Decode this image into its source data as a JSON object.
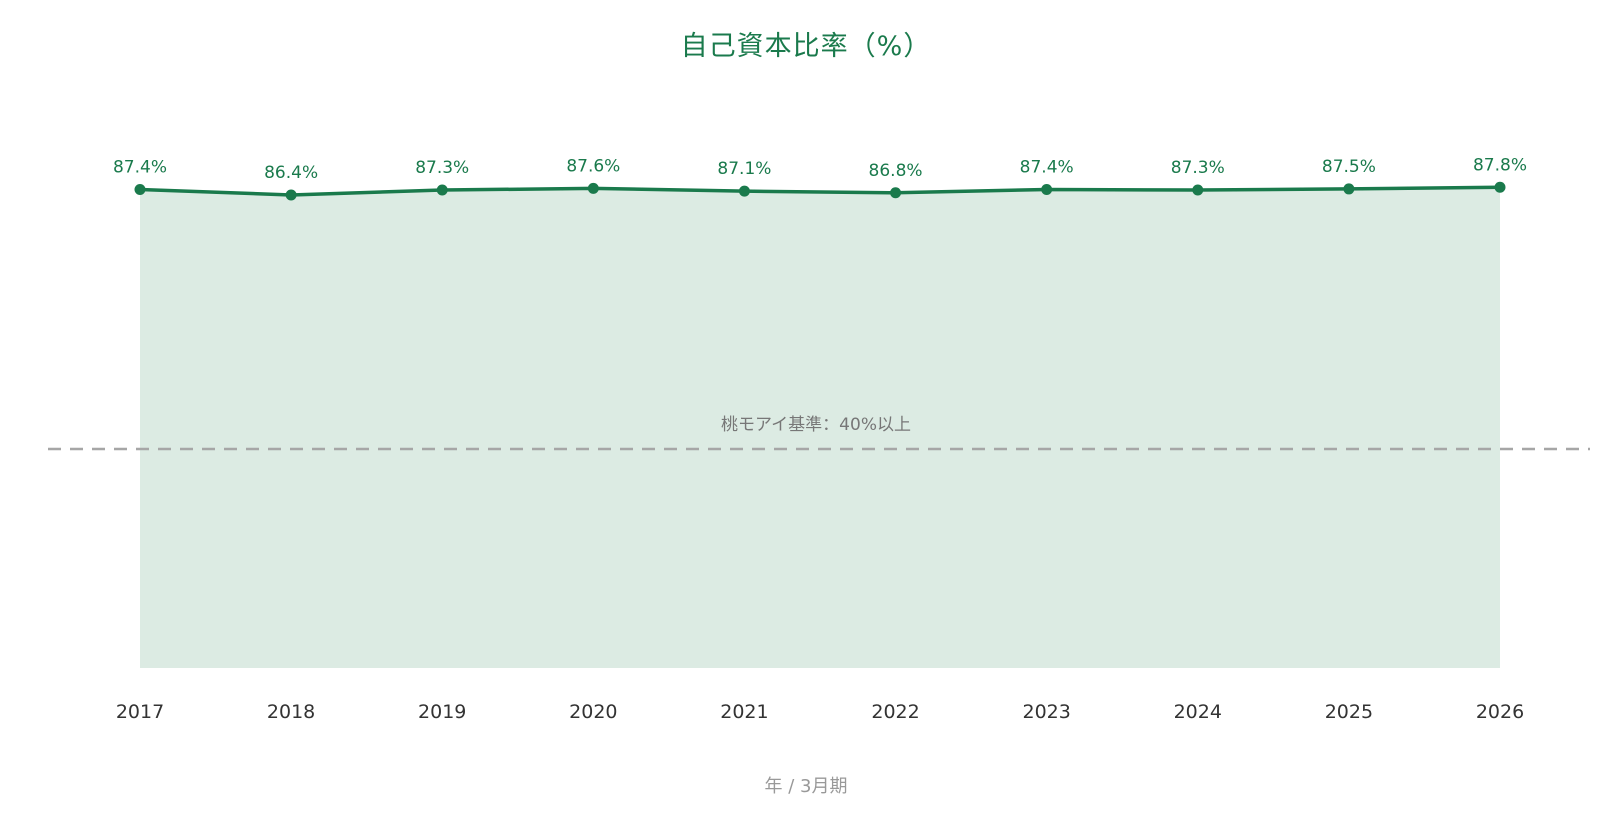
{
  "colors": {
    "line": "#1a7a4c",
    "area": "#dcebe3",
    "title": "#1a7a4c",
    "value_label": "#1a7a4c",
    "reference_line": "#a6a6a6",
    "reference_label": "#777777",
    "tick": "#333333",
    "axis_title": "#999999"
  },
  "chart_data": {
    "type": "area",
    "title": "自己資本比率（%）",
    "xlabel": "年 / 3月期",
    "ylabel": "",
    "categories": [
      "2017",
      "2018",
      "2019",
      "2020",
      "2021",
      "2022",
      "2023",
      "2024",
      "2025",
      "2026"
    ],
    "series": [
      {
        "values": [
          87.4,
          86.4,
          87.3,
          87.6,
          87.1,
          86.8,
          87.4,
          87.3,
          87.5,
          87.8
        ],
        "labels": [
          "87.4%",
          "86.4%",
          "87.3%",
          "87.6%",
          "87.1%",
          "86.8%",
          "87.4%",
          "87.3%",
          "87.5%",
          "87.8%"
        ]
      }
    ],
    "reference_line": {
      "value": 40,
      "label": "桃モアイ基準：40%以上",
      "style": "dashed"
    },
    "grid": false,
    "legend": "none"
  }
}
